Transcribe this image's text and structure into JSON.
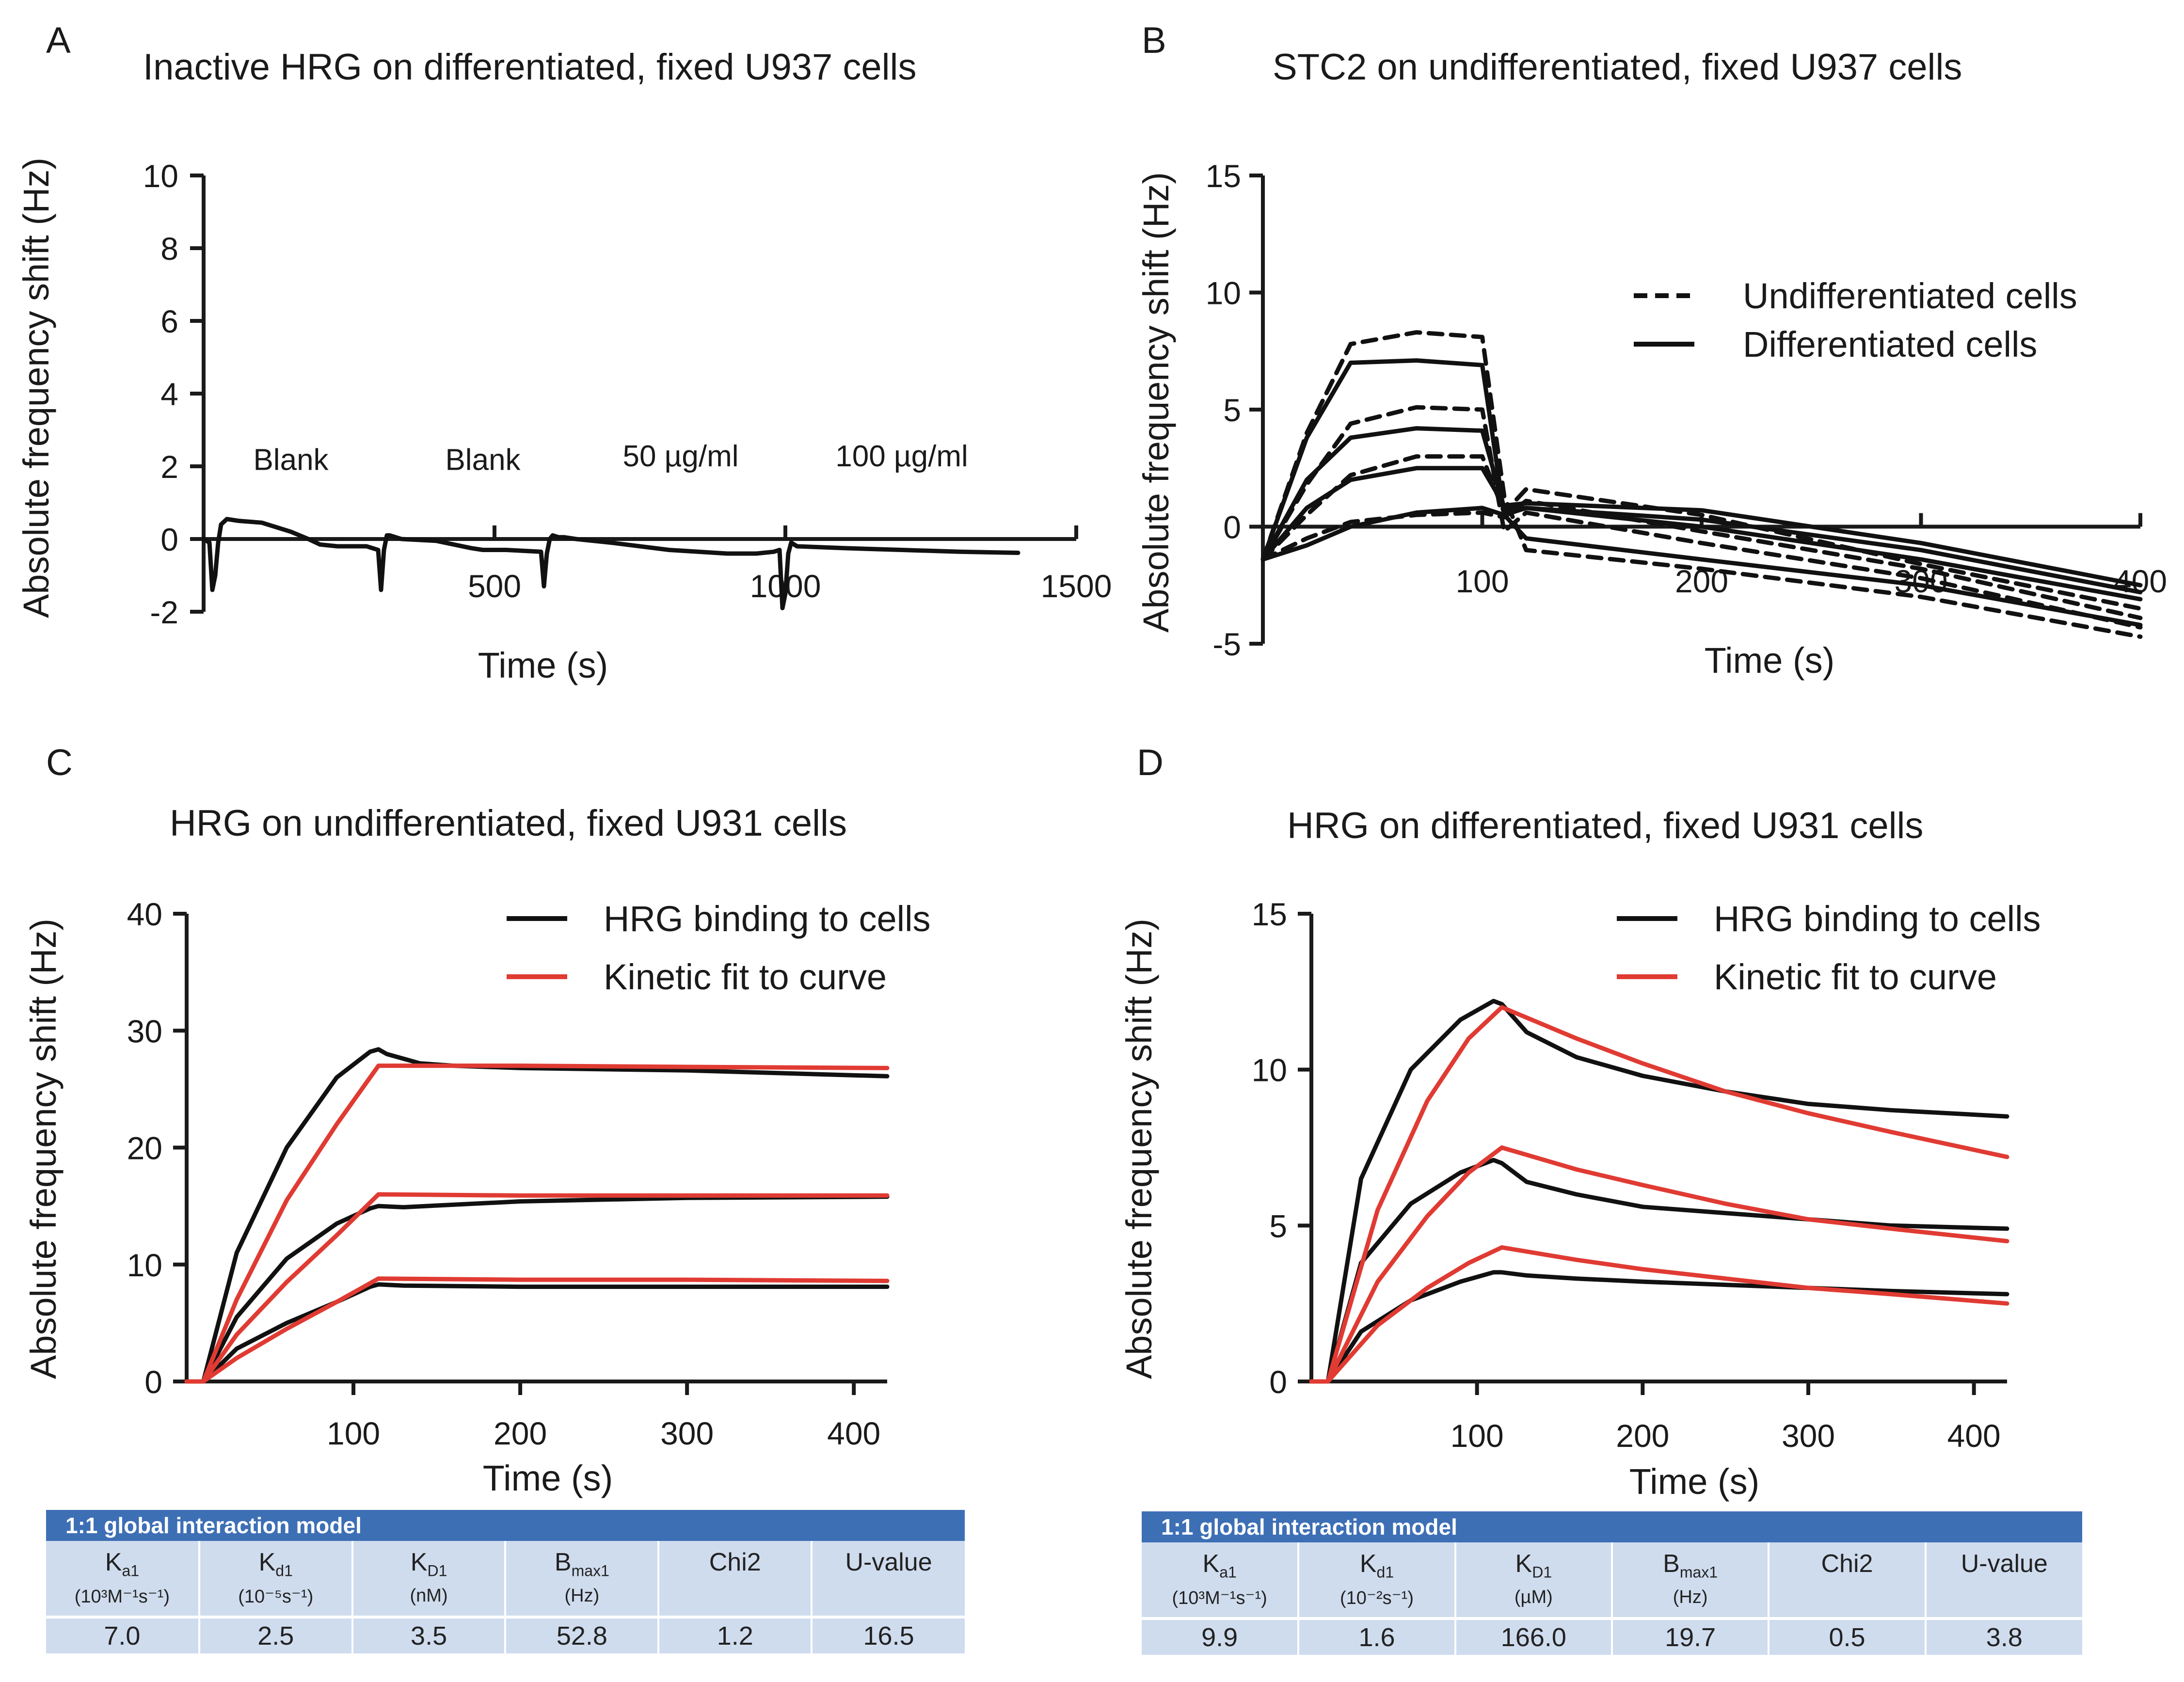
{
  "panels": {
    "A": {
      "letter": "A",
      "title": "Inactive HRG on differentiated, fixed U937 cells"
    },
    "B": {
      "letter": "B",
      "title": "STC2 on undifferentiated, fixed U937 cells"
    },
    "C": {
      "letter": "C",
      "title": "HRG on undifferentiated, fixed U931 cells"
    },
    "D": {
      "letter": "D",
      "title": "HRG on differentiated, fixed U931 cells"
    }
  },
  "colors": {
    "axis": "#1a1a1a",
    "data": "#111111",
    "fit": "#e03b33",
    "table_header": "#3d6fb5",
    "table_cell": "#cfdcee"
  },
  "chart_data": [
    {
      "id": "A",
      "type": "line",
      "title": "Inactive HRG on differentiated, fixed U937 cells",
      "xlabel": "Time (s)",
      "ylabel": "Absolute frequency shift (Hz)",
      "xlim": [
        0,
        1500
      ],
      "ylim": [
        -2,
        10
      ],
      "xticks": [
        "500",
        "1000",
        "1500"
      ],
      "xtick_values": [
        500,
        1000,
        1500
      ],
      "yticks": [
        "-2",
        "0",
        "2",
        "4",
        "6",
        "8",
        "10"
      ],
      "ytick_values": [
        -2,
        0,
        2,
        4,
        6,
        8,
        10
      ],
      "annotations": [
        {
          "text": "Blank",
          "x": 150,
          "y": 1.9
        },
        {
          "text": "Blank",
          "x": 480,
          "y": 1.9
        },
        {
          "text": "50 µg/ml",
          "x": 820,
          "y": 2.0
        },
        {
          "text": "100 µg/ml",
          "x": 1200,
          "y": 2.0
        }
      ],
      "series": [
        {
          "name": "trace",
          "style": "solid",
          "x": [
            0,
            10,
            15,
            20,
            25,
            30,
            40,
            60,
            100,
            150,
            180,
            200,
            230,
            280,
            300,
            305,
            310,
            315,
            320,
            340,
            400,
            460,
            480,
            520,
            580,
            585,
            590,
            595,
            600,
            610,
            620,
            640,
            700,
            800,
            900,
            950,
            980,
            990,
            995,
            1000,
            1005,
            1010,
            1020,
            1100,
            1200,
            1300,
            1400
          ],
          "y": [
            0,
            -0.1,
            -1.4,
            -1.0,
            -0.1,
            0.4,
            0.55,
            0.5,
            0.45,
            0.2,
            0,
            -0.15,
            -0.2,
            -0.2,
            -0.3,
            -1.4,
            -0.3,
            0.1,
            0.1,
            0,
            -0.05,
            -0.25,
            -0.3,
            -0.3,
            -0.35,
            -1.3,
            -0.4,
            0,
            0.1,
            0.05,
            0.05,
            0,
            -0.1,
            -0.3,
            -0.4,
            -0.4,
            -0.35,
            -0.3,
            -1.9,
            -1.5,
            -0.4,
            -0.1,
            -0.2,
            -0.25,
            -0.3,
            -0.35,
            -0.38
          ]
        }
      ]
    },
    {
      "id": "B",
      "type": "line",
      "title": "STC2 on undifferentiated, fixed U937 cells",
      "xlabel": "Time (s)",
      "ylabel": "Absolute frequency shift (Hz)",
      "xlim": [
        0,
        400
      ],
      "ylim": [
        -5,
        15
      ],
      "xticks": [
        "100",
        "200",
        "300",
        "400"
      ],
      "xtick_values": [
        100,
        200,
        300,
        400
      ],
      "yticks": [
        "-5",
        "0",
        "5",
        "10",
        "15"
      ],
      "ytick_values": [
        -5,
        0,
        5,
        10,
        15
      ],
      "legend": [
        {
          "label": "Undifferentiated cells",
          "style": "dashed"
        },
        {
          "label": "Differentiated cells",
          "style": "solid"
        }
      ],
      "legend_position": "top-right",
      "series": [
        {
          "name": "Undifferentiated 1",
          "style": "dashed",
          "x": [
            0,
            20,
            40,
            70,
            100,
            110,
            120,
            200,
            300,
            400
          ],
          "y": [
            -1.4,
            4.0,
            7.8,
            8.3,
            8.1,
            1.3,
            -1.0,
            -1.8,
            -3.0,
            -4.7
          ]
        },
        {
          "name": "Undifferentiated 2",
          "style": "dashed",
          "x": [
            0,
            20,
            40,
            70,
            100,
            110,
            120,
            200,
            300,
            400
          ],
          "y": [
            -1.4,
            1.8,
            4.4,
            5.1,
            5.0,
            -0.2,
            0.6,
            -0.7,
            -2.2,
            -4.3
          ]
        },
        {
          "name": "Undifferentiated 3",
          "style": "dashed",
          "x": [
            0,
            20,
            40,
            70,
            100,
            110,
            120,
            200,
            300,
            400
          ],
          "y": [
            -1.4,
            0.5,
            2.2,
            3.0,
            3.0,
            0.6,
            1.6,
            0.5,
            -1.6,
            -3.5
          ]
        },
        {
          "name": "Undifferentiated 4",
          "style": "dashed",
          "x": [
            0,
            20,
            40,
            70,
            100,
            110,
            120,
            200,
            300,
            400
          ],
          "y": [
            -1.4,
            -0.5,
            0.2,
            0.5,
            0.6,
            0.4,
            1.1,
            -0.2,
            -1.8,
            -3.9
          ]
        },
        {
          "name": "Differentiated 1",
          "style": "solid",
          "x": [
            0,
            20,
            40,
            70,
            100,
            110,
            120,
            200,
            300,
            400
          ],
          "y": [
            -1.4,
            3.8,
            7.0,
            7.1,
            6.9,
            0.5,
            -0.5,
            -1.4,
            -2.5,
            -4.2
          ]
        },
        {
          "name": "Differentiated 2",
          "style": "solid",
          "x": [
            0,
            20,
            40,
            70,
            100,
            110,
            120,
            200,
            300,
            400
          ],
          "y": [
            -1.4,
            2.0,
            3.8,
            4.2,
            4.1,
            0.8,
            0.8,
            0.0,
            -1.4,
            -3.1
          ]
        },
        {
          "name": "Differentiated 3",
          "style": "solid",
          "x": [
            0,
            20,
            40,
            70,
            100,
            110,
            120,
            200,
            300,
            400
          ],
          "y": [
            -1.4,
            0.8,
            2.0,
            2.5,
            2.5,
            0.9,
            1.0,
            0.7,
            -0.7,
            -2.5
          ]
        },
        {
          "name": "Differentiated 4",
          "style": "solid",
          "x": [
            0,
            20,
            40,
            70,
            100,
            110,
            120,
            200,
            300,
            400
          ],
          "y": [
            -1.4,
            -0.8,
            0.0,
            0.6,
            0.8,
            0.5,
            0.8,
            0.3,
            -1.0,
            -2.8
          ]
        }
      ]
    },
    {
      "id": "C",
      "type": "line",
      "title": "HRG on undifferentiated, fixed U931 cells",
      "xlabel": "Time (s)",
      "ylabel": "Absolute frequency shift (Hz)",
      "xlim": [
        0,
        420
      ],
      "ylim": [
        0,
        40
      ],
      "xticks": [
        "100",
        "200",
        "300",
        "400"
      ],
      "xtick_values": [
        100,
        200,
        300,
        400
      ],
      "yticks": [
        "0",
        "10",
        "20",
        "30",
        "40"
      ],
      "ytick_values": [
        0,
        10,
        20,
        30,
        40
      ],
      "legend": [
        {
          "label": "HRG binding to cells",
          "color": "#111111"
        },
        {
          "label": "Kinetic fit to curve",
          "color": "#e03b33"
        }
      ],
      "legend_position": "top-right",
      "series": [
        {
          "name": "HRG binding 1",
          "color": "#111111",
          "x": [
            0,
            10,
            30,
            60,
            90,
            110,
            115,
            120,
            140,
            160,
            200,
            300,
            420
          ],
          "y": [
            0,
            0,
            11,
            20,
            26,
            28.2,
            28.4,
            28.0,
            27.2,
            27.0,
            26.8,
            26.6,
            26.1
          ]
        },
        {
          "name": "HRG binding 2",
          "color": "#111111",
          "x": [
            0,
            10,
            30,
            60,
            90,
            110,
            115,
            130,
            200,
            300,
            420
          ],
          "y": [
            0,
            0,
            5.5,
            10.5,
            13.5,
            14.8,
            15.0,
            14.9,
            15.4,
            15.7,
            15.8
          ]
        },
        {
          "name": "HRG binding 3",
          "color": "#111111",
          "x": [
            0,
            10,
            30,
            60,
            90,
            110,
            115,
            130,
            200,
            300,
            420
          ],
          "y": [
            0,
            0,
            2.8,
            5.0,
            6.8,
            8.1,
            8.3,
            8.2,
            8.1,
            8.1,
            8.1
          ]
        },
        {
          "name": "Kinetic fit 1",
          "color": "#e03b33",
          "x": [
            0,
            10,
            30,
            60,
            90,
            115,
            200,
            300,
            420
          ],
          "y": [
            0,
            0,
            7,
            15.5,
            22,
            27.0,
            27.0,
            26.9,
            26.8
          ]
        },
        {
          "name": "Kinetic fit 2",
          "color": "#e03b33",
          "x": [
            0,
            10,
            30,
            60,
            90,
            115,
            200,
            300,
            420
          ],
          "y": [
            0,
            0,
            4,
            8.5,
            12.5,
            16.0,
            15.9,
            15.9,
            15.9
          ]
        },
        {
          "name": "Kinetic fit 3",
          "color": "#e03b33",
          "x": [
            0,
            10,
            30,
            60,
            90,
            115,
            200,
            300,
            420
          ],
          "y": [
            0,
            0,
            2,
            4.5,
            6.8,
            8.8,
            8.7,
            8.7,
            8.6
          ]
        }
      ]
    },
    {
      "id": "D",
      "type": "line",
      "title": "HRG on differentiated, fixed U931 cells",
      "xlabel": "Time (s)",
      "ylabel": "Absolute frequency shift (Hz)",
      "xlim": [
        0,
        420
      ],
      "ylim": [
        0,
        15
      ],
      "xticks": [
        "100",
        "200",
        "300",
        "400"
      ],
      "xtick_values": [
        100,
        200,
        300,
        400
      ],
      "yticks": [
        "0",
        "5",
        "10",
        "15"
      ],
      "ytick_values": [
        0,
        5,
        10,
        15
      ],
      "legend": [
        {
          "label": "HRG binding to cells",
          "color": "#111111"
        },
        {
          "label": "Kinetic fit to curve",
          "color": "#e03b33"
        }
      ],
      "legend_position": "top-right",
      "series": [
        {
          "name": "HRG binding 1",
          "color": "#111111",
          "x": [
            0,
            10,
            30,
            60,
            90,
            110,
            115,
            130,
            160,
            200,
            250,
            300,
            350,
            420
          ],
          "y": [
            0,
            0,
            6.5,
            10,
            11.6,
            12.2,
            12.1,
            11.2,
            10.4,
            9.8,
            9.3,
            8.9,
            8.7,
            8.5
          ]
        },
        {
          "name": "HRG binding 2",
          "color": "#111111",
          "x": [
            0,
            10,
            30,
            60,
            90,
            110,
            115,
            130,
            160,
            200,
            250,
            300,
            350,
            420
          ],
          "y": [
            0,
            0,
            3.8,
            5.7,
            6.7,
            7.1,
            7.0,
            6.4,
            6.0,
            5.6,
            5.4,
            5.2,
            5.0,
            4.9
          ]
        },
        {
          "name": "HRG binding 3",
          "color": "#111111",
          "x": [
            0,
            10,
            30,
            60,
            90,
            110,
            115,
            130,
            160,
            200,
            250,
            300,
            350,
            420
          ],
          "y": [
            0,
            0,
            1.6,
            2.6,
            3.2,
            3.5,
            3.5,
            3.4,
            3.3,
            3.2,
            3.1,
            3.0,
            2.9,
            2.8
          ]
        },
        {
          "name": "Kinetic fit 1",
          "color": "#e03b33",
          "x": [
            0,
            10,
            40,
            70,
            95,
            115,
            160,
            200,
            250,
            300,
            350,
            420
          ],
          "y": [
            0,
            0,
            5.5,
            9.0,
            11.0,
            12.0,
            11.0,
            10.2,
            9.3,
            8.6,
            8.0,
            7.2
          ]
        },
        {
          "name": "Kinetic fit 2",
          "color": "#e03b33",
          "x": [
            0,
            10,
            40,
            70,
            95,
            115,
            160,
            200,
            250,
            300,
            350,
            420
          ],
          "y": [
            0,
            0,
            3.2,
            5.3,
            6.7,
            7.5,
            6.8,
            6.3,
            5.7,
            5.2,
            4.9,
            4.5
          ]
        },
        {
          "name": "Kinetic fit 3",
          "color": "#e03b33",
          "x": [
            0,
            10,
            40,
            70,
            95,
            115,
            160,
            200,
            250,
            300,
            350,
            420
          ],
          "y": [
            0,
            0,
            1.8,
            3.0,
            3.8,
            4.3,
            3.9,
            3.6,
            3.3,
            3.0,
            2.8,
            2.5
          ]
        }
      ]
    }
  ],
  "tables": {
    "C": {
      "title": "1:1 global interaction model",
      "columns": [
        {
          "name": "Ka1",
          "main": "K",
          "sub": "a1",
          "unit": "(10³M⁻¹s⁻¹)"
        },
        {
          "name": "Kd1",
          "main": "K",
          "sub": "d1",
          "unit": "(10⁻⁵s⁻¹)"
        },
        {
          "name": "KD1",
          "main": "K",
          "sub": "D1",
          "unit": "(nM)"
        },
        {
          "name": "Bmax1",
          "main": "B",
          "sub": "max1",
          "unit": "(Hz)"
        },
        {
          "name": "Chi2",
          "main": "Chi2",
          "sub": "",
          "unit": ""
        },
        {
          "name": "U-value",
          "main": "U-value",
          "sub": "",
          "unit": ""
        }
      ],
      "values": [
        "7.0",
        "2.5",
        "3.5",
        "52.8",
        "1.2",
        "16.5"
      ]
    },
    "D": {
      "title": "1:1 global interaction model",
      "columns": [
        {
          "name": "Ka1",
          "main": "K",
          "sub": "a1",
          "unit": "(10³M⁻¹s⁻¹)"
        },
        {
          "name": "Kd1",
          "main": "K",
          "sub": "d1",
          "unit": "(10⁻²s⁻¹)"
        },
        {
          "name": "KD1",
          "main": "K",
          "sub": "D1",
          "unit": "(µM)"
        },
        {
          "name": "Bmax1",
          "main": "B",
          "sub": "max1",
          "unit": "(Hz)"
        },
        {
          "name": "Chi2",
          "main": "Chi2",
          "sub": "",
          "unit": ""
        },
        {
          "name": "U-value",
          "main": "U-value",
          "sub": "",
          "unit": ""
        }
      ],
      "values": [
        "9.9",
        "1.6",
        "166.0",
        "19.7",
        "0.5",
        "3.8"
      ]
    }
  }
}
